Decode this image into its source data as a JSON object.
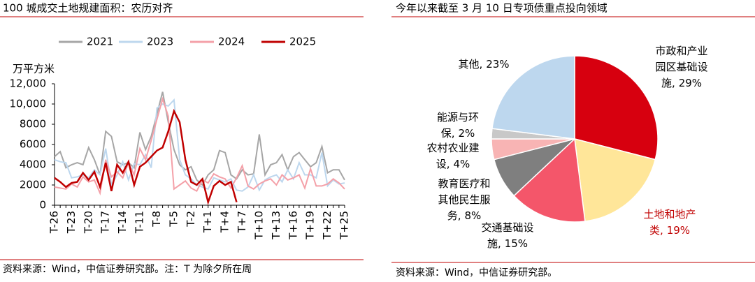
{
  "chart_data": [
    {
      "type": "line",
      "title": "100 城成交土地规建面积：农历对齐",
      "ylabel": "万平方米",
      "source": "资料来源：Wind，中信证券研究部。注：T 为除夕所在周",
      "categories": [
        "T-26",
        null,
        null,
        "T-23",
        null,
        null,
        "T-20",
        null,
        null,
        "T-17",
        null,
        null,
        "T-14",
        null,
        null,
        "T-11",
        null,
        null,
        "T-8",
        null,
        null,
        "T-5",
        null,
        null,
        "T-2",
        null,
        null,
        "T+1",
        null,
        null,
        "T+4",
        null,
        null,
        "T+7",
        null,
        null,
        "T+10",
        null,
        null,
        "T+13",
        null,
        null,
        "T+16",
        null,
        null,
        "T+19",
        null,
        null,
        "T+22",
        null,
        null,
        "T+25"
      ],
      "ylim": [
        0,
        12000
      ],
      "yticks": [
        0,
        2000,
        4000,
        6000,
        8000,
        {
          "value": 10000,
          "label": "10,000"
        },
        {
          "value": 12000,
          "label": "12,000"
        }
      ],
      "series": [
        {
          "name": "2021",
          "color": "#a6a6a6",
          "values": [
            4800,
            5300,
            3700,
            4000,
            4200,
            4000,
            5700,
            4500,
            3000,
            7300,
            6800,
            4300,
            4000,
            4200,
            3700,
            7200,
            5500,
            6800,
            9000,
            11200,
            8200,
            5500,
            4000,
            3500,
            3800,
            2500,
            2000,
            3000,
            3500,
            5400,
            5200,
            3000,
            2600,
            3500,
            3000,
            3100,
            7000,
            3000,
            4000,
            4200,
            5000,
            3500,
            4800,
            5200,
            4500,
            3800,
            4200,
            5800,
            3200,
            3500,
            3500,
            2500
          ]
        },
        {
          "name": "2023",
          "color": "#bdd7ee",
          "values": [
            4500,
            4300,
            4200,
            2700,
            2800,
            3000,
            2700,
            3500,
            3000,
            5600,
            2000,
            3000,
            4300,
            2500,
            4100,
            4000,
            5000,
            3700,
            9600,
            10000,
            9800,
            10400,
            4500,
            3000,
            2600,
            2000,
            1800,
            1600,
            2700,
            2500,
            2300,
            2600,
            1500,
            1400,
            1800,
            3000,
            1500,
            2500,
            2800,
            3000,
            2300,
            3500,
            2600,
            4200,
            3000,
            3000,
            2700,
            5200,
            1900,
            2500,
            2100,
            2200
          ]
        },
        {
          "name": "2024",
          "color": "#f4a0a8",
          "values": [
            1800,
            1700,
            1600,
            2100,
            1800,
            2800,
            2300,
            2500,
            1200,
            4500,
            2800,
            3300,
            2700,
            4200,
            3000,
            5600,
            4500,
            6400,
            8500,
            10500,
            8800,
            1600,
            2000,
            2400,
            1700,
            1400,
            2500,
            2200,
            3100,
            2800,
            2600,
            1700,
            2700,
            3900,
            1900,
            1600,
            2100,
            2400,
            2600,
            2000,
            3000,
            2500,
            2700,
            3000,
            1700,
            3600,
            1900,
            1900,
            2100,
            2600,
            2200,
            1600
          ]
        },
        {
          "name": "2025",
          "color": "#c00000",
          "values": [
            2700,
            2300,
            1800,
            2200,
            2300,
            3200,
            2500,
            3300,
            1800,
            4200,
            1400,
            4000,
            3200,
            4300,
            2000,
            3800,
            4200,
            4800,
            5400,
            5700,
            7300,
            9300,
            8200,
            4500,
            2300,
            2000,
            2600,
            300,
            1900,
            2400,
            2000,
            2300,
            300,
            null,
            null,
            null,
            null,
            null,
            null,
            null,
            null,
            null,
            null,
            null,
            null,
            null,
            null,
            null,
            null,
            null,
            null,
            null
          ]
        }
      ]
    },
    {
      "type": "pie",
      "title": "今年以来截至 3 月 10 日专项债重点投向领域",
      "source": "资料来源：Wind，中信证券研究部。",
      "categories": [
        [
          "市政和产业",
          "园区基础设",
          "施,"
        ],
        [
          "土地和地产",
          "类,"
        ],
        [
          "交通基础设",
          "施,"
        ],
        [
          "教育医疗和",
          "其他民生服",
          "务,"
        ],
        [
          "农村农业建",
          "设,"
        ],
        [
          "能源与环",
          "保,"
        ],
        [
          "其他,"
        ]
      ],
      "values": [
        29,
        19,
        15,
        8,
        4,
        2,
        23
      ],
      "value_labels": [
        "29%",
        "19%",
        "15%",
        "8%",
        "4%",
        "2%",
        "23%"
      ],
      "colors": [
        "#d7000f",
        "#ffe699",
        "#f4566a",
        "#7f7f7f",
        "#f8b4b4",
        "#c8c8c8",
        "#bdd7ee"
      ],
      "label_colors": [
        "#000000",
        "#c00000",
        "#000000",
        "#000000",
        "#000000",
        "#000000",
        "#000000"
      ]
    }
  ]
}
